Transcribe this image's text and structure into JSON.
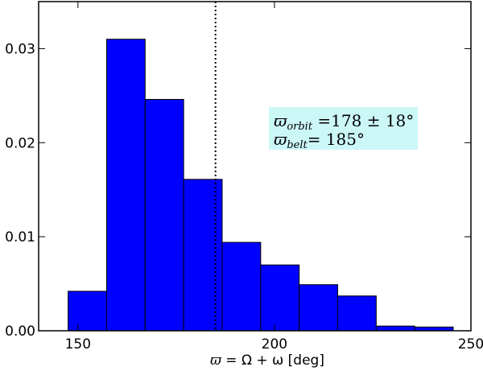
{
  "chart_data": {
    "type": "bar",
    "bin_edges": [
      147.5,
      157.3,
      167.1,
      176.9,
      186.7,
      196.5,
      206.3,
      216.1,
      225.9,
      235.7,
      245.5
    ],
    "values": [
      0.0042,
      0.031,
      0.0246,
      0.0161,
      0.0094,
      0.007,
      0.0049,
      0.0037,
      0.0005,
      0.0004
    ],
    "xlim": [
      140,
      250
    ],
    "ylim": [
      0,
      0.035
    ],
    "xticks": [
      150,
      200,
      250
    ],
    "yticks": [
      0.0,
      0.01,
      0.02,
      0.03
    ],
    "xtick_labels": [
      "150",
      "200",
      "250"
    ],
    "ytick_labels": [
      "0.00",
      "0.01",
      "0.02",
      "0.03"
    ],
    "xlabel": {
      "symbol": "ϖ",
      "equation": " = Ω + ω",
      "unit": " [deg]"
    },
    "reference_line_x": 185,
    "annotation": {
      "line1": {
        "symbol": "ϖ",
        "subscript": "orbit",
        "text": " =178 ± 18°"
      },
      "line2": {
        "symbol": "ϖ",
        "subscript": "belt",
        "text": "= 185°"
      }
    },
    "grid": false,
    "colors": {
      "bar_fill": "#0000ff",
      "bar_edge": "#000000",
      "annotation_bg": "#ccf7f7",
      "reference_line": "#000000"
    }
  }
}
